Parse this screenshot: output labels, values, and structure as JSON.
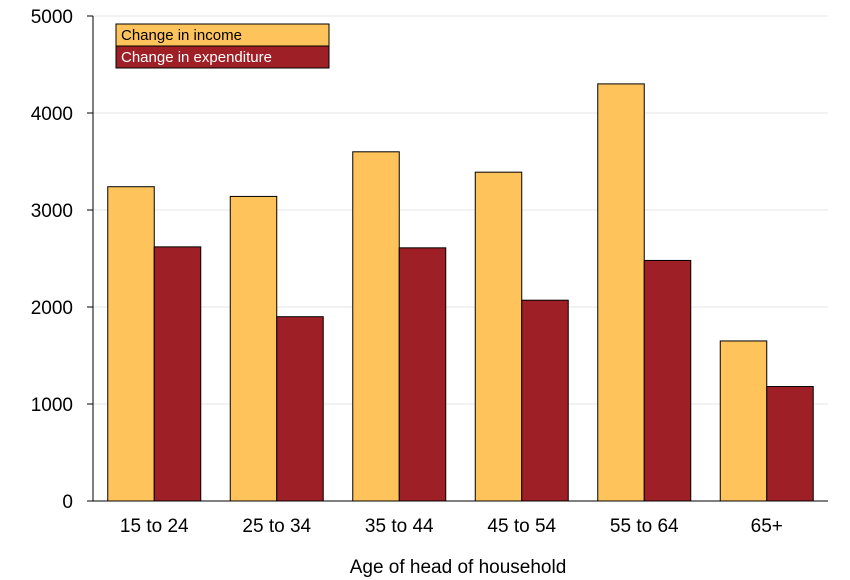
{
  "chart_data": {
    "type": "bar",
    "xlabel": "Age of head of household",
    "ylabel": "",
    "ylim": [
      0,
      5000
    ],
    "yticks": [
      0,
      1000,
      2000,
      3000,
      4000,
      5000
    ],
    "grid": true,
    "legend_position": "top-left",
    "categories": [
      "15 to 24",
      "25 to 34",
      "35 to 44",
      "45 to 54",
      "55 to 64",
      "65+"
    ],
    "series": [
      {
        "name": "Change in income",
        "color": "#FEC35B",
        "text_color": "#000000",
        "values": [
          3240,
          3140,
          3600,
          3390,
          4300,
          1650
        ]
      },
      {
        "name": "Change in expenditure",
        "color": "#9E1F25",
        "text_color": "#ffffff",
        "values": [
          2620,
          1900,
          2610,
          2070,
          2480,
          1180
        ]
      }
    ]
  }
}
